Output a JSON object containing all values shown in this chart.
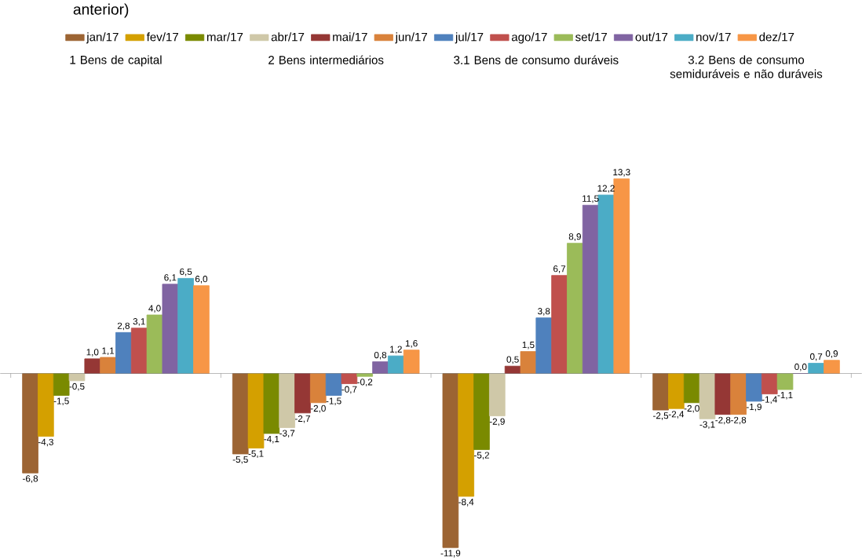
{
  "chart_data": {
    "type": "bar",
    "title": "anterior)",
    "categories": [
      "1 Bens de capital",
      "2 Bens intermediários",
      "3.1 Bens de consumo duráveis",
      "3.2 Bens de consumo semiduráveis e não duráveis"
    ],
    "series": [
      {
        "name": "jan/17",
        "color": "#9c6433",
        "values": [
          -6.8,
          -5.5,
          -11.9,
          -2.5
        ],
        "value_labels": [
          "-6,8",
          "-5,5",
          "-11,9",
          "-2,5"
        ]
      },
      {
        "name": "fev/17",
        "color": "#d4a000",
        "values": [
          -4.3,
          -5.1,
          -8.4,
          -2.4
        ],
        "value_labels": [
          "-4,3",
          "-5,1",
          "-8,4",
          "-2,4"
        ]
      },
      {
        "name": "mar/17",
        "color": "#7a8a00",
        "values": [
          -1.5,
          -4.1,
          -5.2,
          -2.0
        ],
        "value_labels": [
          "-1,5",
          "-4,1",
          "-5,2",
          "-2,0"
        ]
      },
      {
        "name": "abr/17",
        "color": "#cfc8a8",
        "values": [
          -0.5,
          -3.7,
          -2.9,
          -3.1
        ],
        "value_labels": [
          "-0,5",
          "-3,7",
          "-2,9",
          "-3,1"
        ]
      },
      {
        "name": "mai/17",
        "color": "#953735",
        "values": [
          1.0,
          -2.7,
          0.5,
          -2.8
        ],
        "value_labels": [
          "1,0",
          "-2,7",
          "0,5",
          "-2,8"
        ]
      },
      {
        "name": "jun/17",
        "color": "#d9823b",
        "values": [
          1.1,
          -2.0,
          1.5,
          -2.8
        ],
        "value_labels": [
          "1,1",
          "-2,0",
          "1,5",
          "-2,8"
        ]
      },
      {
        "name": "jul/17",
        "color": "#4f81bd",
        "values": [
          2.8,
          -1.5,
          3.8,
          -1.9
        ],
        "value_labels": [
          "2,8",
          "-1,5",
          "3,8",
          "-1,9"
        ]
      },
      {
        "name": "ago/17",
        "color": "#c0504d",
        "values": [
          3.1,
          -0.7,
          6.7,
          -1.4
        ],
        "value_labels": [
          "3,1",
          "-0,7",
          "6,7",
          "-1,4"
        ]
      },
      {
        "name": "set/17",
        "color": "#9bbb59",
        "values": [
          4.0,
          -0.2,
          8.9,
          -1.1
        ],
        "value_labels": [
          "4,0",
          "-0,2",
          "8,9",
          "-1,1"
        ]
      },
      {
        "name": "out/17",
        "color": "#8064a2",
        "values": [
          6.1,
          0.8,
          11.5,
          0.0
        ],
        "value_labels": [
          "6,1",
          "0,8",
          "11,5",
          "0,0"
        ]
      },
      {
        "name": "nov/17",
        "color": "#4bacc6",
        "values": [
          6.5,
          1.2,
          12.2,
          0.7
        ],
        "value_labels": [
          "6,5",
          "1,2",
          "12,2",
          "0,7"
        ]
      },
      {
        "name": "dez/17",
        "color": "#f79646",
        "values": [
          6.0,
          1.6,
          13.3,
          0.9
        ],
        "value_labels": [
          "6,0",
          "1,6",
          "13,3",
          "0,9"
        ]
      }
    ],
    "legend": "top"
  }
}
